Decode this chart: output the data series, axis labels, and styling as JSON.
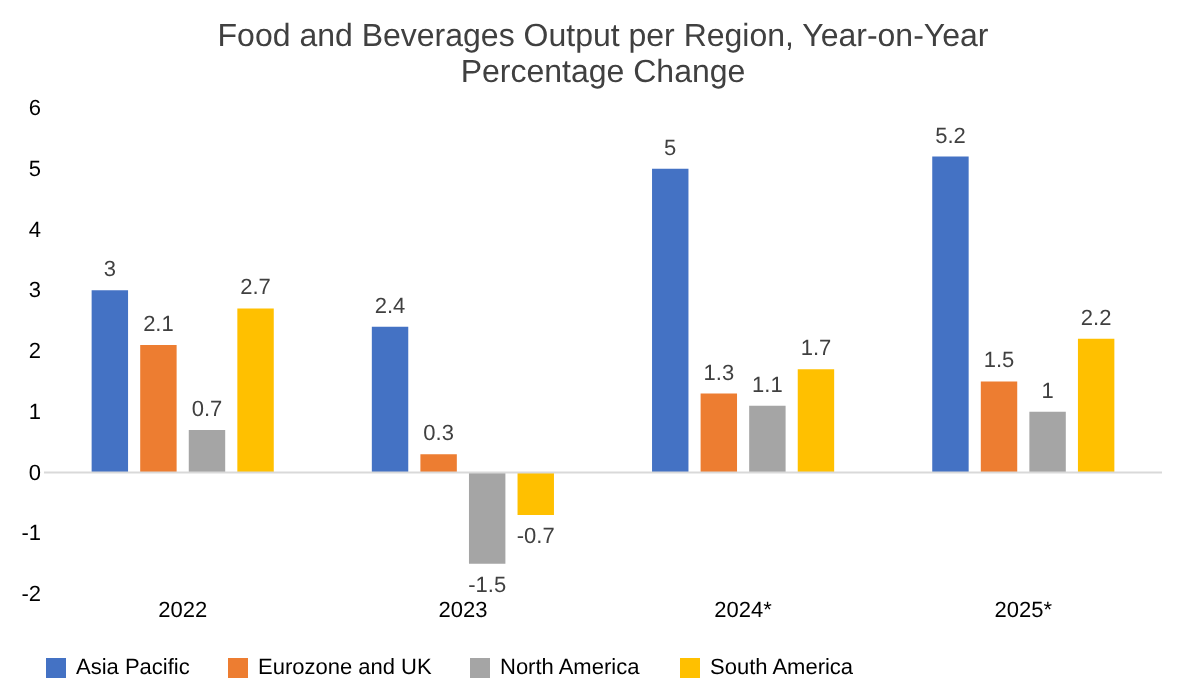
{
  "chart_data": {
    "type": "bar",
    "title": "Food and Beverages Output per Region, Year-on-Year Percentage Change",
    "categories": [
      "2022",
      "2023",
      "2024*",
      "2025*"
    ],
    "series": [
      {
        "name": "Asia Pacific",
        "color": "#4472c4",
        "values": [
          3,
          2.4,
          5,
          5.2
        ]
      },
      {
        "name": "Eurozone and UK",
        "color": "#ed7d31",
        "values": [
          2.1,
          0.3,
          1.3,
          1.5
        ]
      },
      {
        "name": "North America",
        "color": "#a5a5a5",
        "values": [
          0.7,
          -1.5,
          1.1,
          1
        ]
      },
      {
        "name": "South America",
        "color": "#ffc000",
        "values": [
          2.7,
          -0.7,
          1.7,
          2.2
        ]
      }
    ],
    "ylim": [
      -2,
      6
    ],
    "yticks": [
      -2,
      -1,
      0,
      1,
      2,
      3,
      4,
      5,
      6
    ],
    "ref_lines": [
      {
        "axis": "y",
        "value": 0,
        "color": "#d9d9d9"
      }
    ],
    "data_labels": true,
    "grid": false,
    "legend": "bottom"
  }
}
